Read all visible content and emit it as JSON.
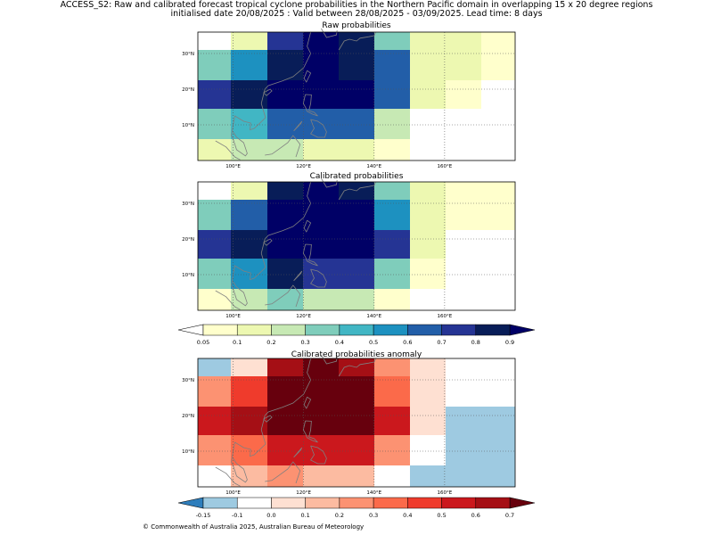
{
  "header": {
    "title_line1": "ACCESS_S2: Raw and calibrated forecast tropical cyclone probabilities in the Northern Pacific domain in overlapping 15 x 20 degree regions",
    "title_line2": "initialised date 20/08/2025 :  Valid between 28/08/2025 - 03/09/2025. Lead time: 8 days"
  },
  "footer": {
    "copyright": "© Commonwealth of Australia 2025, Australian Bureau of Meteorology"
  },
  "palettes": {
    "prob": [
      "#ffffcc",
      "#edf8b1",
      "#c7e9b4",
      "#7fcdbb",
      "#41b6c4",
      "#1d91c0",
      "#225ea8",
      "#253494",
      "#081d58",
      "#000066"
    ],
    "anom": [
      "#2e7ebc",
      "#9ecae1",
      "#ffffff",
      "#fee0d2",
      "#fcbba1",
      "#fc9272",
      "#fb6a4a",
      "#ef3b2c",
      "#cb181d",
      "#a50f15",
      "#67000d"
    ]
  },
  "chart_data": [
    {
      "type": "heatmap",
      "title": "Raw probabilities",
      "xticks": [
        "100°E",
        "120°E",
        "140°E",
        "160°E"
      ],
      "yticks": [
        "30°N",
        "20°N",
        "10°N"
      ],
      "columns": 9,
      "rows": [
        {
          "h": 20,
          "cells": [
            null,
            0.1,
            0.7,
            0.9,
            0.8,
            0.3,
            0.1,
            0.1,
            0.05
          ]
        },
        {
          "h": 34,
          "cells": [
            0.3,
            0.5,
            0.8,
            0.9,
            0.85,
            0.6,
            0.1,
            0.1,
            0.05
          ]
        },
        {
          "h": 32,
          "cells": [
            0.7,
            0.8,
            0.9,
            0.9,
            0.9,
            0.6,
            0.1,
            0.05,
            null
          ]
        },
        {
          "h": 34,
          "cells": [
            0.3,
            0.4,
            0.6,
            0.6,
            0.6,
            0.2,
            null,
            null,
            null
          ]
        },
        {
          "h": 24,
          "cells": [
            0.1,
            0.2,
            0.2,
            0.1,
            0.1,
            0.05,
            null,
            null,
            null
          ]
        }
      ]
    },
    {
      "type": "heatmap",
      "title": "Calibrated probabilities",
      "xticks": [
        "100°E",
        "120°E",
        "140°E",
        "160°E"
      ],
      "yticks": [
        "30°N",
        "20°N",
        "10°N"
      ],
      "columns": 9,
      "rows": [
        {
          "h": 20,
          "cells": [
            null,
            0.1,
            0.8,
            0.9,
            0.85,
            0.3,
            0.1,
            0.05,
            0.05
          ]
        },
        {
          "h": 34,
          "cells": [
            0.3,
            0.6,
            0.9,
            0.9,
            0.9,
            0.5,
            0.1,
            0.05,
            0.05
          ]
        },
        {
          "h": 32,
          "cells": [
            0.7,
            0.85,
            0.9,
            0.9,
            0.9,
            0.7,
            0.1,
            null,
            null
          ]
        },
        {
          "h": 34,
          "cells": [
            0.3,
            0.5,
            0.8,
            0.7,
            0.7,
            0.3,
            0.05,
            null,
            null
          ]
        },
        {
          "h": 24,
          "cells": [
            0.05,
            0.2,
            0.3,
            0.2,
            0.2,
            0.05,
            null,
            null,
            null
          ]
        }
      ]
    },
    {
      "type": "colorbar",
      "ticks": [
        "0.05",
        "0.1",
        "0.2",
        "0.3",
        "0.4",
        "0.5",
        "0.6",
        "0.7",
        "0.8",
        "0.9"
      ]
    },
    {
      "type": "heatmap",
      "title": "Calibrated probabilities anomaly",
      "xticks": [
        "100°E",
        "120°E",
        "140°E",
        "160°E"
      ],
      "yticks": [
        "30°N",
        "20°N",
        "10°N"
      ],
      "columns": 9,
      "rows": [
        {
          "h": 20,
          "cells": [
            -0.15,
            0.0,
            0.6,
            0.7,
            0.6,
            0.2,
            0.0,
            -0.1,
            -0.1
          ]
        },
        {
          "h": 34,
          "cells": [
            0.2,
            0.4,
            0.7,
            0.7,
            0.7,
            0.3,
            0.0,
            -0.1,
            -0.1
          ]
        },
        {
          "h": 32,
          "cells": [
            0.5,
            0.6,
            0.7,
            0.7,
            0.7,
            0.5,
            0.0,
            -0.15,
            -0.15
          ]
        },
        {
          "h": 34,
          "cells": [
            0.2,
            0.3,
            0.5,
            0.5,
            0.5,
            0.2,
            -0.1,
            -0.15,
            -0.15
          ]
        },
        {
          "h": 24,
          "cells": [
            -0.1,
            0.1,
            0.2,
            0.1,
            0.1,
            -0.1,
            -0.15,
            -0.15,
            -0.15
          ]
        }
      ]
    },
    {
      "type": "colorbar",
      "ticks": [
        "-0.15",
        "-0.1",
        "0.0",
        "0.1",
        "0.2",
        "0.3",
        "0.4",
        "0.5",
        "0.6",
        "0.7"
      ]
    }
  ]
}
